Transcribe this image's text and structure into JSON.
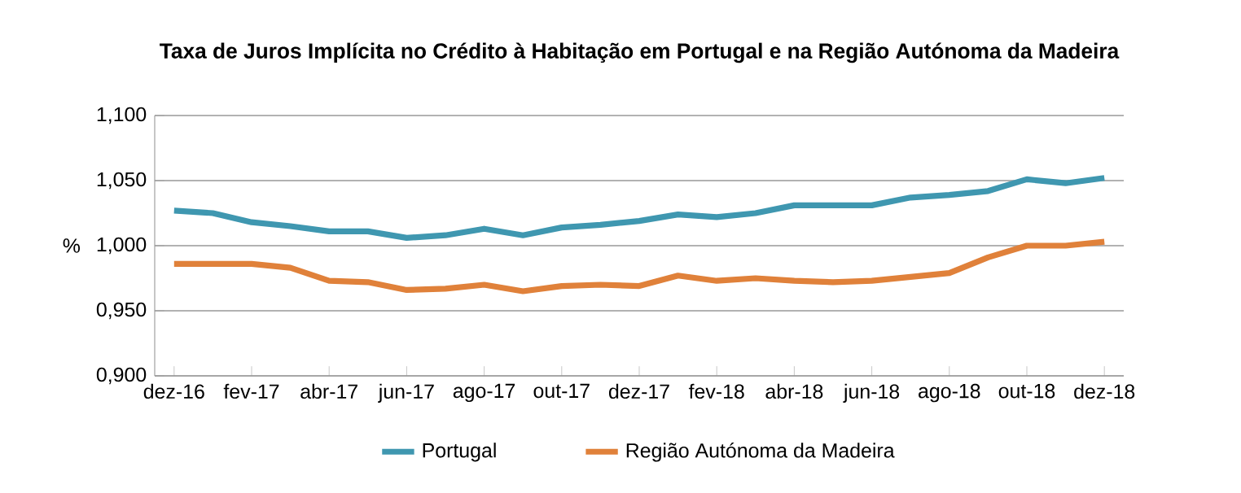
{
  "chart_data": {
    "type": "line",
    "title": "Taxa de Juros Implícita no Crédito à Habitação em Portugal e na Região Autónoma da Madeira",
    "ylabel": "%",
    "categories": [
      "dez-16",
      null,
      "fev-17",
      null,
      "abr-17",
      null,
      "jun-17",
      null,
      "ago-17",
      null,
      "out-17",
      null,
      "dez-17",
      null,
      "fev-18",
      null,
      "abr-18",
      null,
      "jun-18",
      null,
      "ago-18",
      null,
      "out-18",
      null,
      "dez-18"
    ],
    "series": [
      {
        "name": "Portugal",
        "color": "#3f97b0",
        "values": [
          1.027,
          1.025,
          1.018,
          1.015,
          1.011,
          1.011,
          1.006,
          1.008,
          1.013,
          1.008,
          1.014,
          1.016,
          1.019,
          1.024,
          1.022,
          1.025,
          1.031,
          1.031,
          1.031,
          1.037,
          1.039,
          1.042,
          1.051,
          1.048,
          1.052
        ]
      },
      {
        "name": "Região Autónoma da Madeira",
        "color": "#e0813a",
        "values": [
          0.986,
          0.986,
          0.986,
          0.983,
          0.973,
          0.972,
          0.966,
          0.967,
          0.97,
          0.965,
          0.969,
          0.97,
          0.969,
          0.977,
          0.973,
          0.975,
          0.973,
          0.972,
          0.973,
          0.976,
          0.979,
          0.991,
          1.0,
          1.0,
          1.003
        ]
      }
    ],
    "ylim": [
      0.9,
      1.1
    ],
    "yticks": [
      {
        "value": 0.9,
        "label": "0,900"
      },
      {
        "value": 0.95,
        "label": "0,950"
      },
      {
        "value": 1.0,
        "label": "1,000"
      },
      {
        "value": 1.05,
        "label": "1,050"
      },
      {
        "value": 1.1,
        "label": "1,100"
      }
    ],
    "grid": "y",
    "legend": "bottom",
    "marker": "none",
    "line_style": "solid"
  }
}
